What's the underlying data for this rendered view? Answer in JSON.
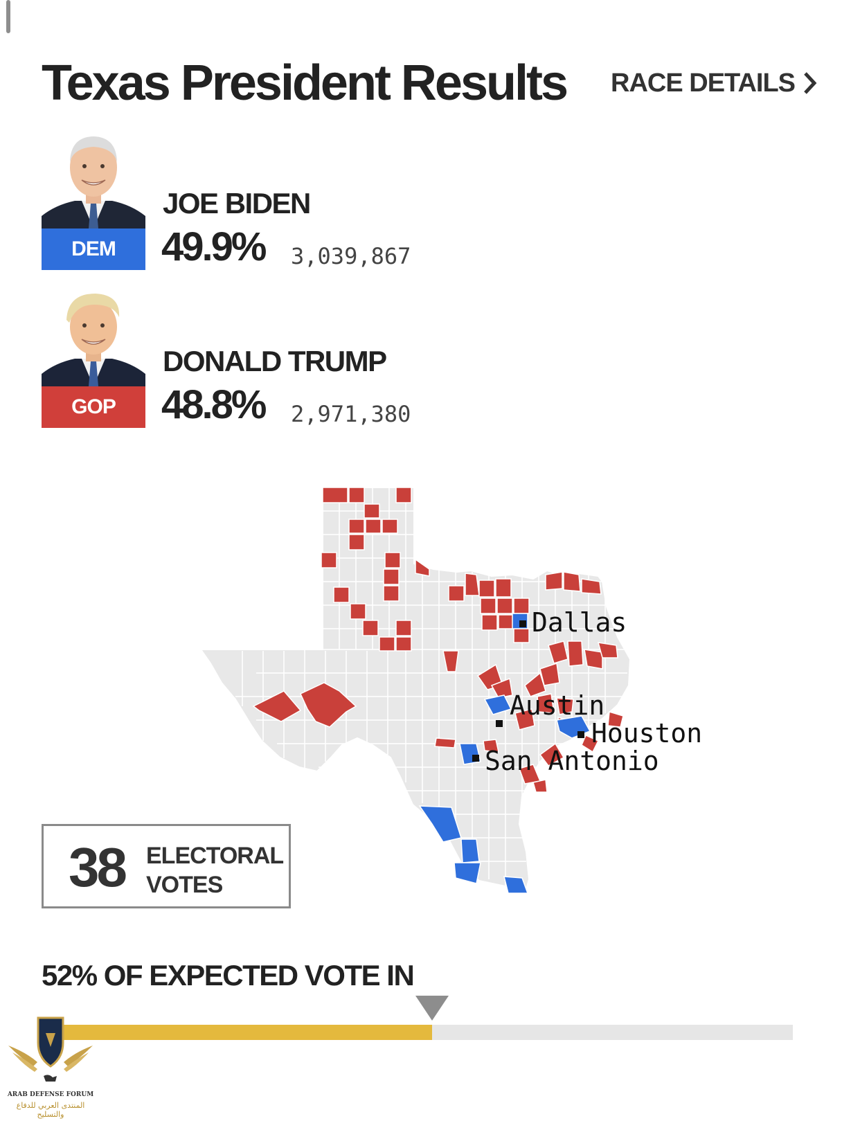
{
  "header": {
    "title": "Texas President Results",
    "race_details_label": "RACE DETAILS"
  },
  "candidates": [
    {
      "name": "JOE BIDEN",
      "party": "DEM",
      "percent": "49.9%",
      "votes": "3,039,867",
      "color": "#2f6fdc"
    },
    {
      "name": "DONALD TRUMP",
      "party": "GOP",
      "percent": "48.8%",
      "votes": "2,971,380",
      "color": "#d03f3a"
    }
  ],
  "map": {
    "state": "Texas",
    "county_colors": {
      "republican": "#c9403a",
      "democrat": "#2f6fdc",
      "no_result": "#e8e8e8"
    },
    "cities": [
      "Dallas",
      "Austin",
      "Houston",
      "San Antonio"
    ]
  },
  "electoral": {
    "votes": "38",
    "label_line1": "ELECTORAL",
    "label_line2": "VOTES"
  },
  "expected_vote": {
    "label": "52% OF EXPECTED VOTE IN",
    "percent": 52,
    "bar_color": "#e4b93d",
    "marker_percent": 52
  },
  "watermark": {
    "text_en": "ARAB DEFENSE FORUM",
    "text_ar": "المنتدى العربي للدفاع والتسليح"
  }
}
